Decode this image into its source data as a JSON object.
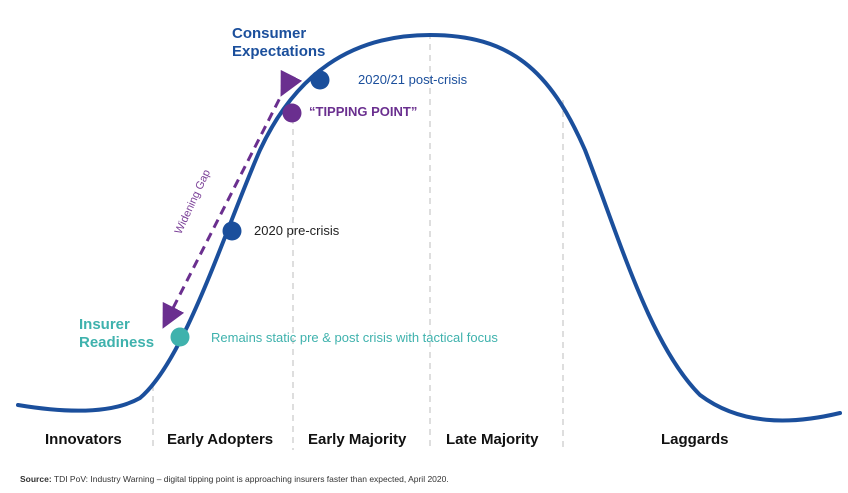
{
  "diagram": {
    "segments": [
      "Innovators",
      "Early Adopters",
      "Early Majority",
      "Late Majority",
      "Laggards"
    ],
    "consumer_expectations": {
      "line1": "Consumer",
      "line2": "Expectations"
    },
    "insurer_readiness": {
      "line1": "Insurer",
      "line2": "Readiness"
    },
    "points": {
      "post_crisis": "2020/21 post-crisis",
      "tipping_point": "“TIPPING POINT”",
      "pre_crisis": "2020 pre-crisis",
      "static": "Remains static pre & post crisis with tactical focus"
    },
    "widening_gap": "Widening Gap",
    "source": {
      "label": "Source:",
      "text": "TDI PoV: Industry Warning – digital tipping point is approaching insurers faster than expected, April 2020."
    },
    "colors": {
      "curve": "#1b4f9c",
      "purple": "#6a2f8f",
      "teal": "#3fb2ad",
      "divider": "#c8c8c8"
    }
  }
}
